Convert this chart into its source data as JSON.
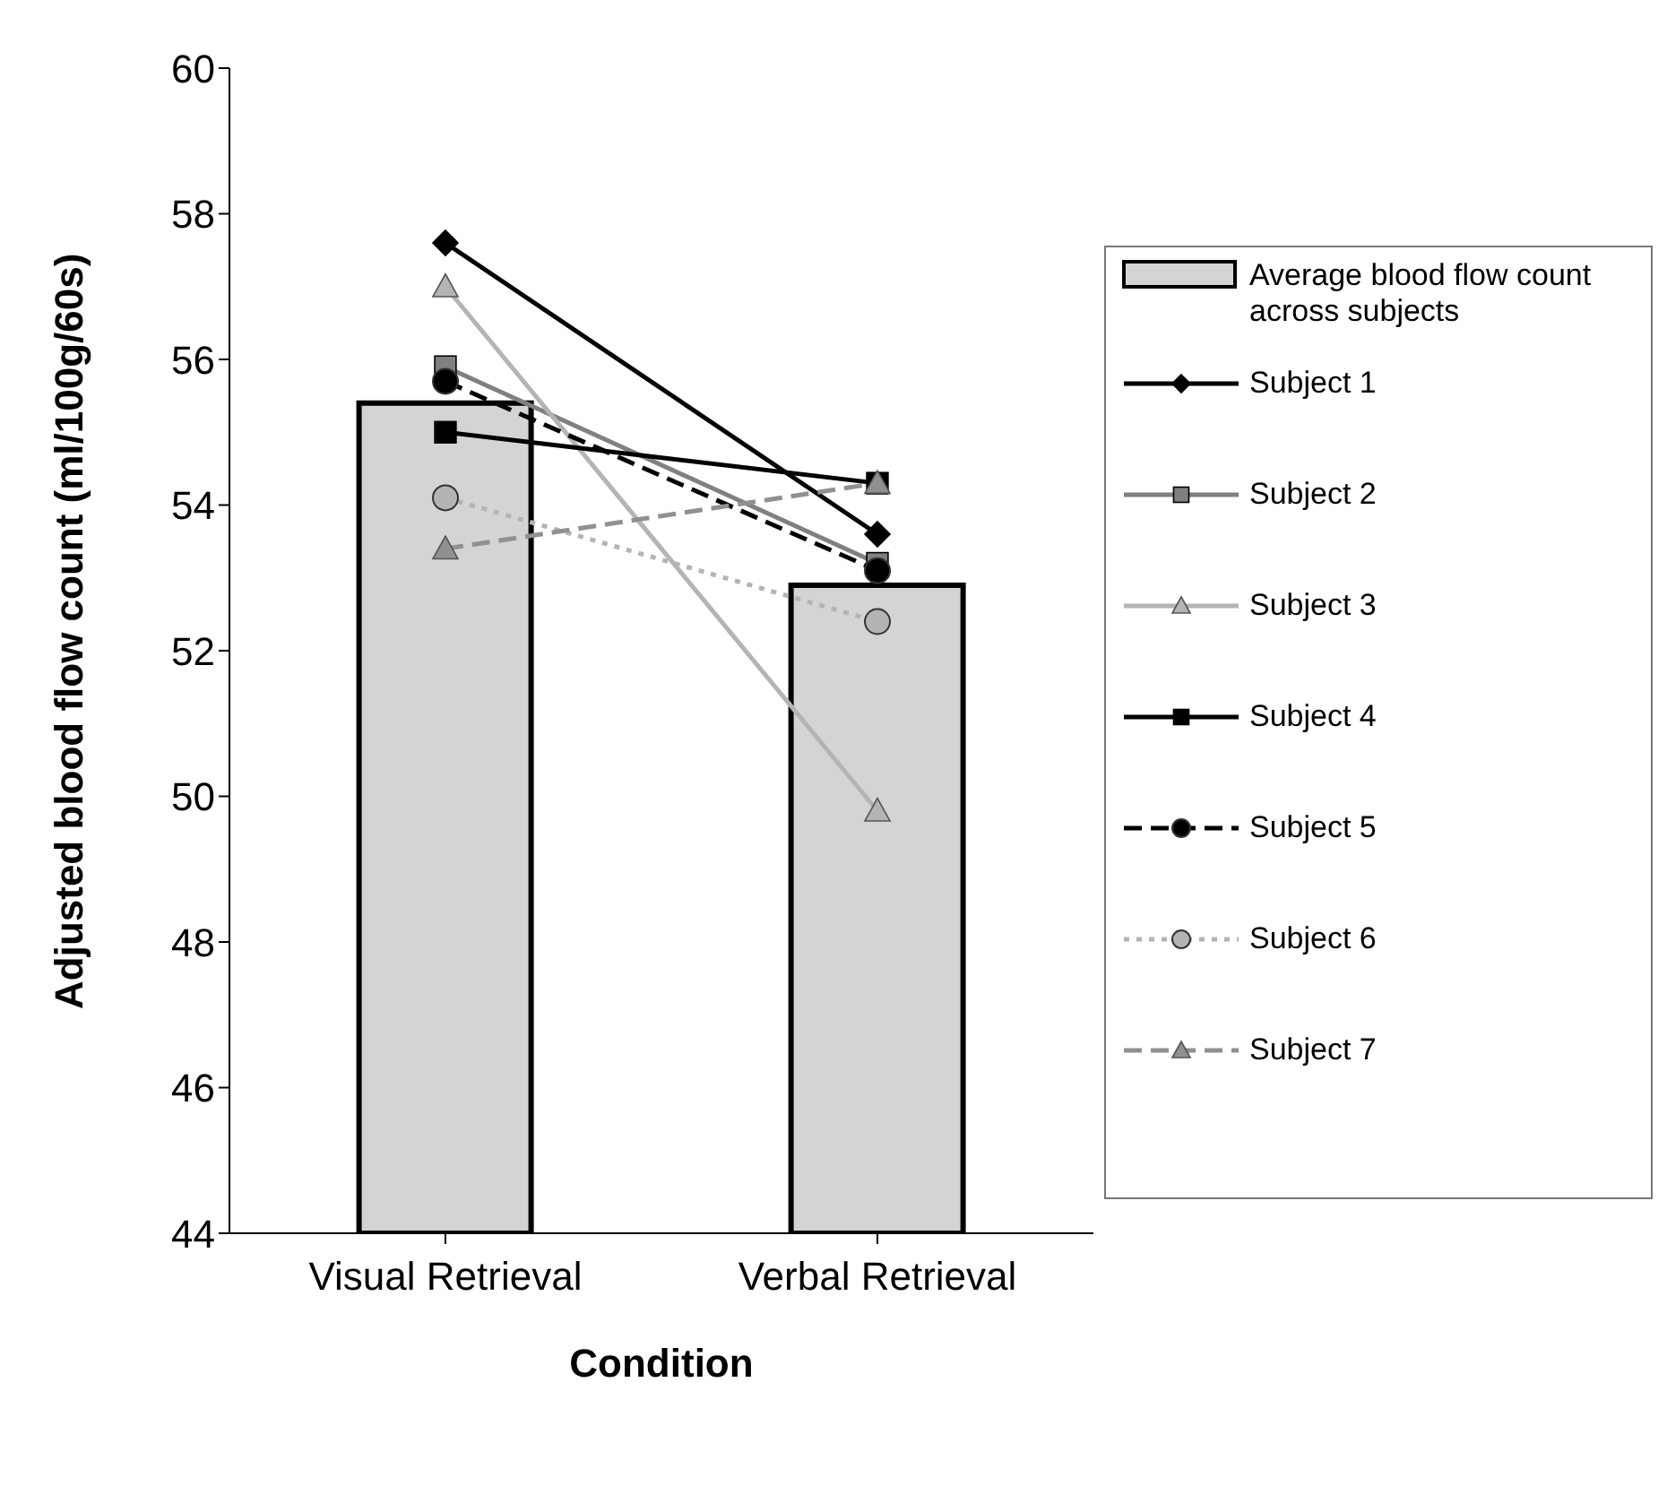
{
  "chart_data": {
    "type": "bar",
    "xlabel": "Condition",
    "ylabel": "Adjusted blood flow count (ml/100g/60s)",
    "categories": [
      "Visual Retrieval",
      "Verbal Retrieval"
    ],
    "ylim": [
      44,
      60
    ],
    "yticks": [
      44,
      46,
      48,
      50,
      52,
      54,
      56,
      58,
      60
    ],
    "grid": false,
    "legend": "right",
    "series": [
      {
        "name": "Average blood flow count across subjects",
        "color": "#d4d4d4",
        "values": [
          55.4,
          52.9
        ]
      },
      {
        "name": "Subject 1",
        "type": "line",
        "color": "#000000",
        "marker": "diamond",
        "line_style": "solid",
        "values": [
          57.6,
          53.6
        ]
      },
      {
        "name": "Subject 2",
        "type": "line",
        "color": "#808080",
        "marker": "square",
        "line_style": "solid",
        "values": [
          55.9,
          53.2
        ]
      },
      {
        "name": "Subject 3",
        "type": "line",
        "color": "#b4b4b4",
        "marker": "triangle",
        "line_style": "solid",
        "values": [
          57.0,
          49.8
        ]
      },
      {
        "name": "Subject 4",
        "type": "line",
        "color": "#000000",
        "marker": "square",
        "line_style": "solid",
        "values": [
          55.0,
          54.3
        ]
      },
      {
        "name": "Subject 5",
        "type": "line",
        "color": "#000000",
        "marker": "circle",
        "line_style": "dashed",
        "values": [
          55.7,
          53.1
        ]
      },
      {
        "name": "Subject 6",
        "type": "line",
        "color": "#b4b4b4",
        "marker": "circle",
        "line_style": "dotted",
        "values": [
          54.1,
          52.4
        ]
      },
      {
        "name": "Subject 7",
        "type": "line",
        "color": "#909090",
        "marker": "triangle",
        "line_style": "dashed",
        "values": [
          53.4,
          54.3
        ]
      }
    ]
  }
}
